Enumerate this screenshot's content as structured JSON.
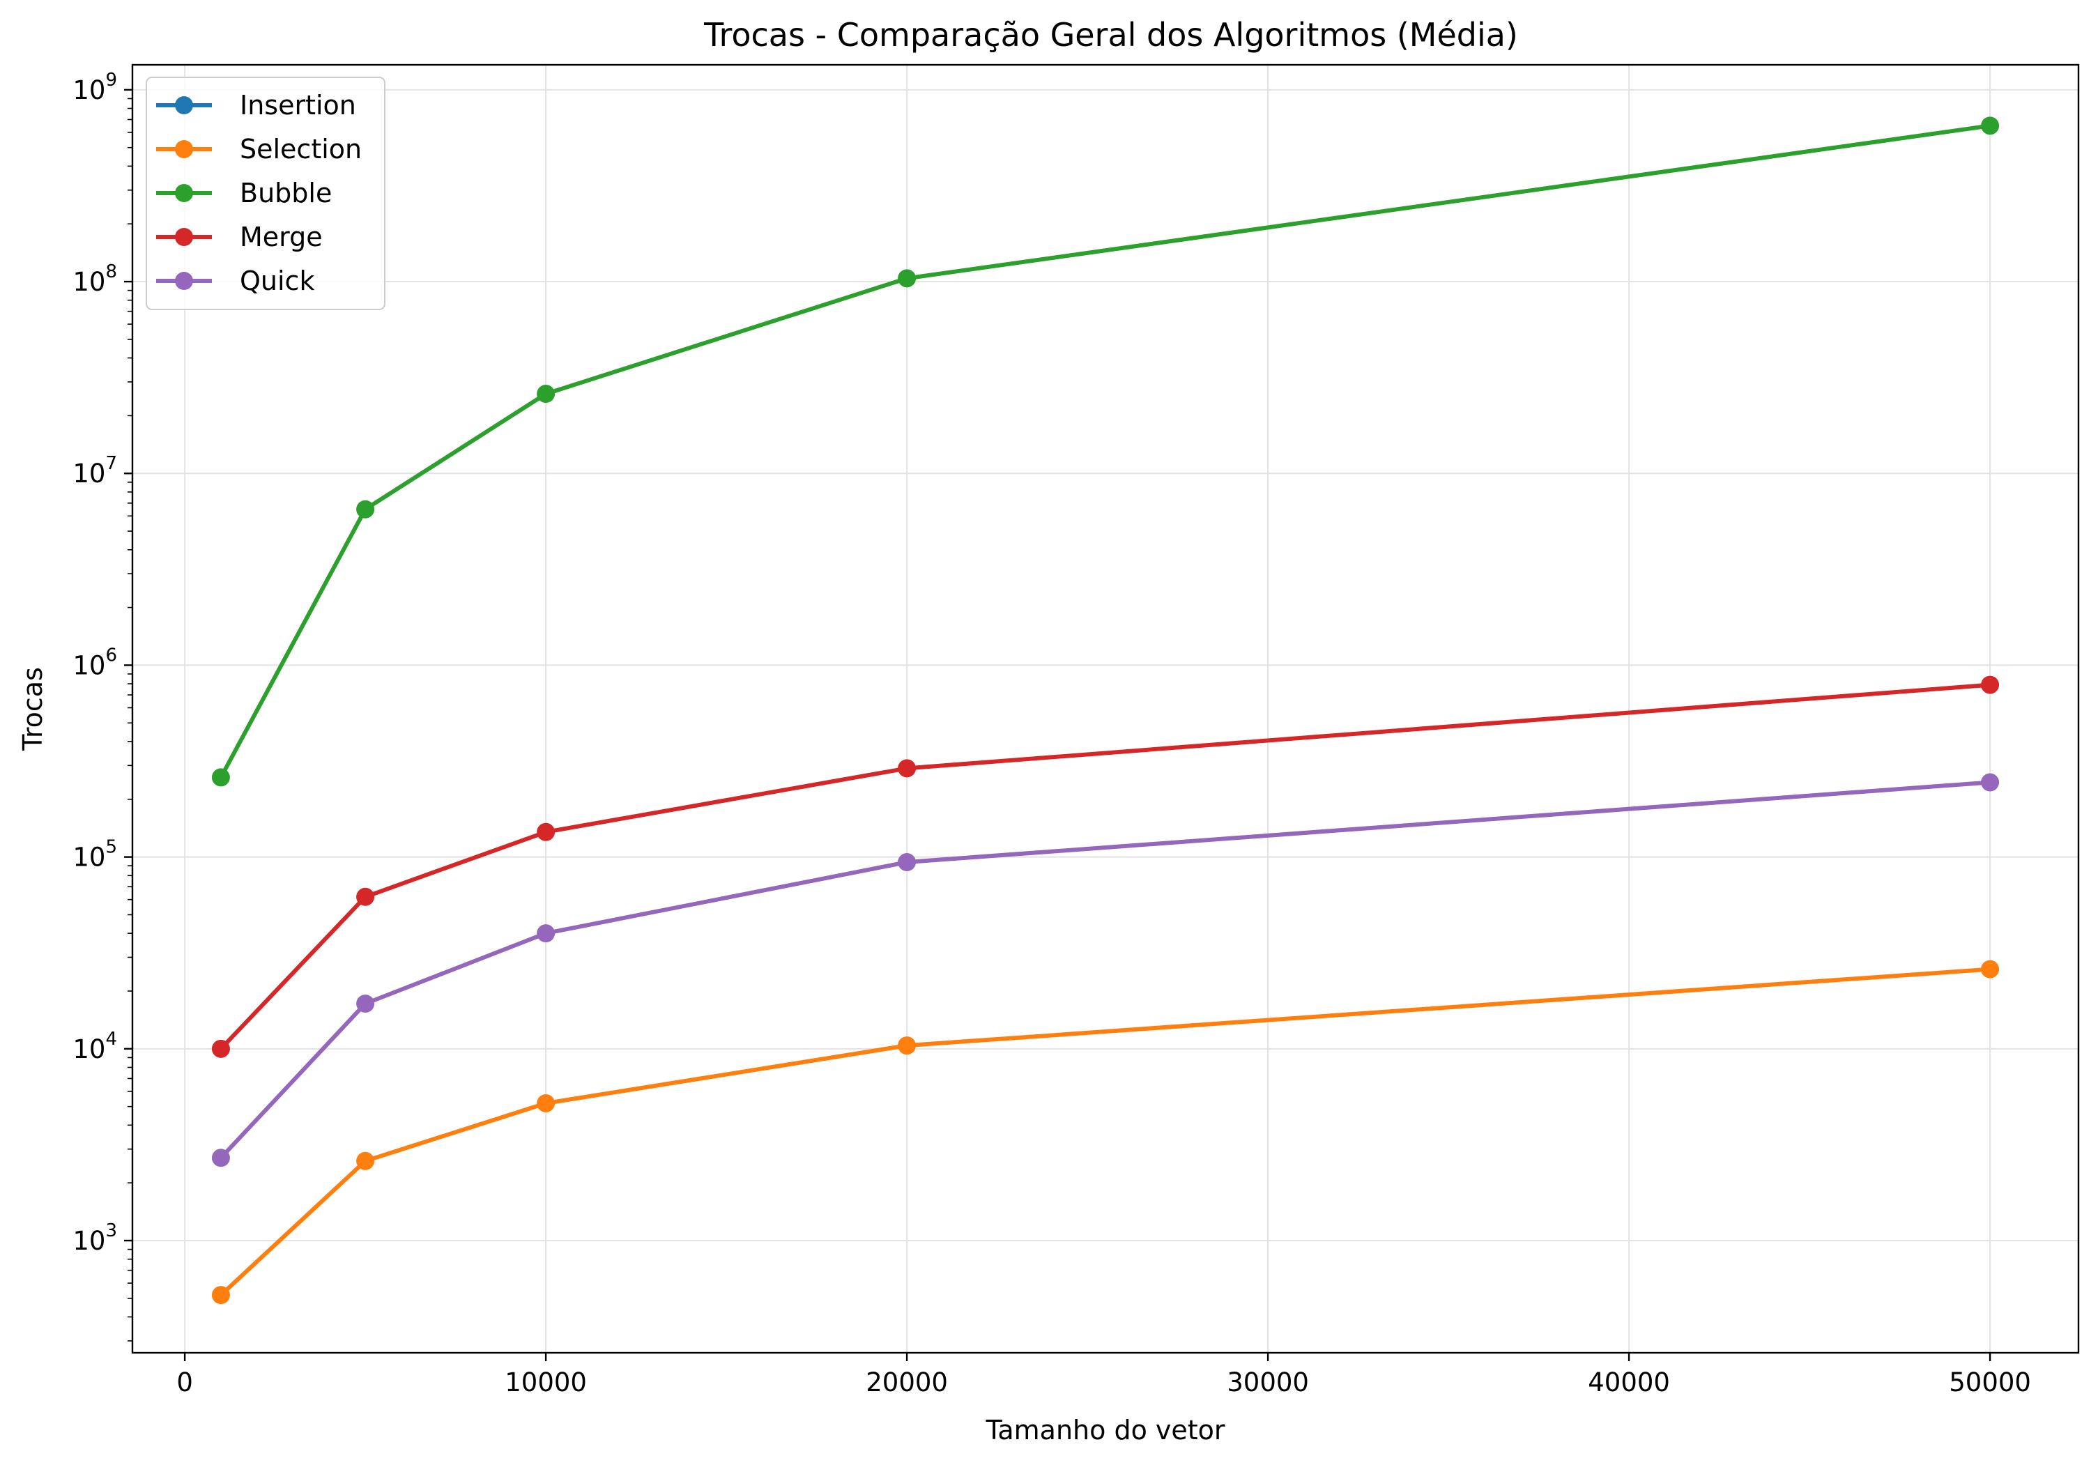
{
  "chart_data": {
    "type": "line",
    "title": "Trocas - Comparação Geral dos Algoritmos (Média)",
    "xlabel": "Tamanho do vetor",
    "ylabel": "Trocas",
    "x_scale": "linear",
    "y_scale": "log",
    "xlim": [
      -1450,
      52450
    ],
    "ylim": [
      260,
      1350000000
    ],
    "x_ticks": [
      0,
      10000,
      20000,
      30000,
      40000,
      50000
    ],
    "x_tick_labels": [
      "0",
      "10000",
      "20000",
      "30000",
      "40000",
      "50000"
    ],
    "y_ticks": [
      1000,
      10000,
      100000,
      1000000,
      10000000,
      100000000,
      1000000000
    ],
    "y_tick_labels": [
      {
        "base": "10",
        "exp": "3"
      },
      {
        "base": "10",
        "exp": "4"
      },
      {
        "base": "10",
        "exp": "5"
      },
      {
        "base": "10",
        "exp": "6"
      },
      {
        "base": "10",
        "exp": "7"
      },
      {
        "base": "10",
        "exp": "8"
      },
      {
        "base": "10",
        "exp": "9"
      }
    ],
    "grid": true,
    "legend_position": "top-left",
    "x": [
      1000,
      5000,
      10000,
      20000,
      50000
    ],
    "series": [
      {
        "name": "Insertion",
        "color": "#1f77b4",
        "values": [
          null,
          null,
          null,
          null,
          null
        ]
      },
      {
        "name": "Selection",
        "color": "#ff7f0e",
        "values": [
          520,
          2600,
          5200,
          10400,
          26000
        ]
      },
      {
        "name": "Bubble",
        "color": "#2ca02c",
        "values": [
          260000,
          6500000,
          26000000,
          104000000,
          650000000
        ]
      },
      {
        "name": "Merge",
        "color": "#d62728",
        "values": [
          10000,
          62000,
          135000,
          290000,
          790000
        ]
      },
      {
        "name": "Quick",
        "color": "#9467bd",
        "values": [
          2700,
          17200,
          40000,
          94000,
          245000
        ]
      }
    ]
  }
}
